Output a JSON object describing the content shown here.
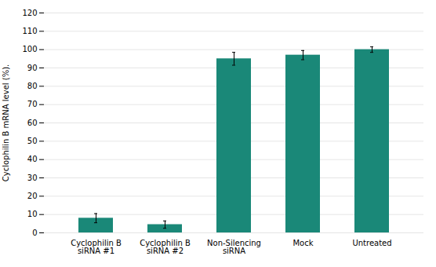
{
  "chart_data": {
    "type": "bar",
    "categories": [
      "Cyclophilin B\nsiRNA #1",
      "Cyclophilin B\nsiRNA #2",
      "Non-Silencing\nsiRNA",
      "Mock",
      "Untreated"
    ],
    "values": [
      8.0,
      4.5,
      95.0,
      97.0,
      100.0
    ],
    "errors": [
      2.5,
      2.0,
      3.5,
      2.5,
      1.5
    ],
    "color": "#1a8878",
    "ylabel": "Cyclophilin B mRNA level (%).",
    "ylim": [
      0,
      120
    ],
    "yticks": [
      0,
      10,
      20,
      30,
      40,
      50,
      60,
      70,
      80,
      90,
      100,
      110,
      120
    ],
    "grid": true
  }
}
